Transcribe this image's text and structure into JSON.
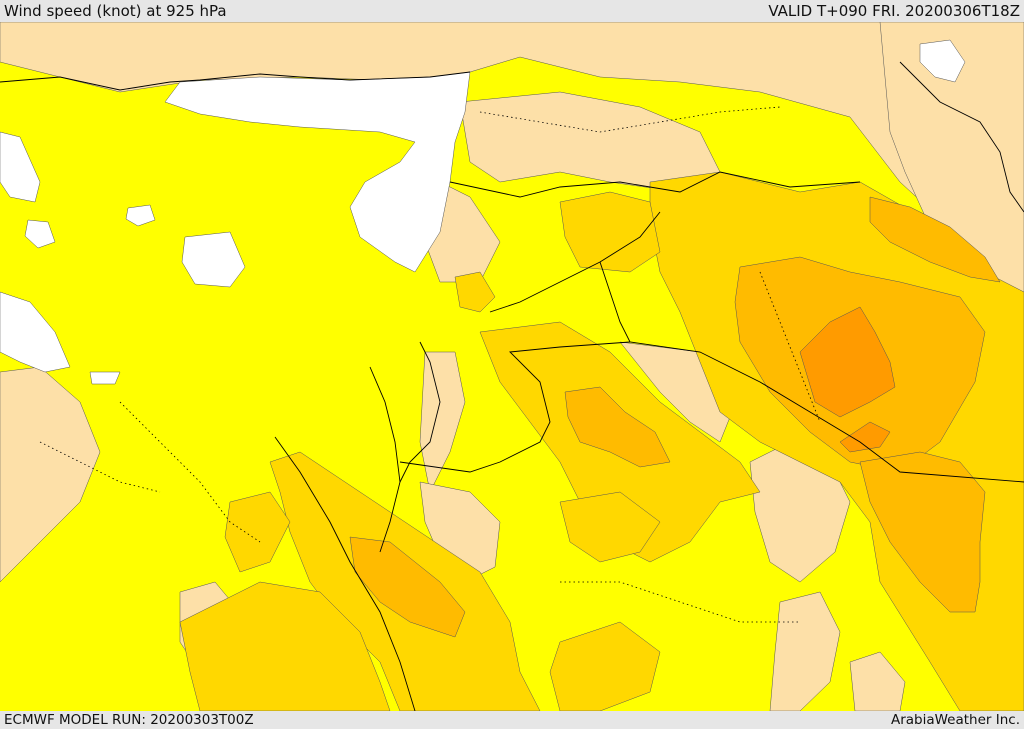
{
  "header": {
    "title": "Wind speed (knot) at 925 hPa",
    "valid": "VALID T+090 FRI. 20200306T18Z"
  },
  "footer": {
    "model_run": "ECMWF MODEL RUN: 20200303T00Z",
    "credit": "ArabiaWeather Inc."
  },
  "colors": {
    "sea": "#ffffff",
    "calm": "#fde0a8",
    "light": "#ffff00",
    "moderate": "#ffd800",
    "fresh": "#ffbb00",
    "strong": "#ff9b00",
    "frame": "#e6e6e6",
    "border": "#000000"
  }
}
